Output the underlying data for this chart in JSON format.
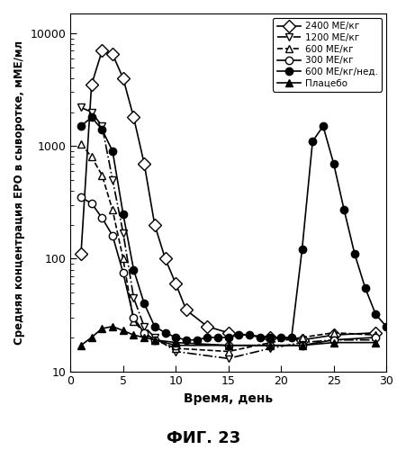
{
  "title": "ФИГ. 23",
  "ylabel": "Средняя концентрация ЕРО в сыворотке, мМЕ/мл",
  "xlabel": "Время, день",
  "xlim": [
    0,
    30
  ],
  "ylim": [
    10,
    15000
  ],
  "series": {
    "300": {
      "label": "300 МЕ/кг",
      "linestyle": "-",
      "marker": "o",
      "fillstyle": "none",
      "color": "black",
      "markersize": 6,
      "x": [
        1,
        2,
        3,
        4,
        5,
        6,
        7,
        8,
        10,
        15,
        19,
        22,
        25,
        29
      ],
      "y": [
        350,
        310,
        230,
        160,
        75,
        30,
        22,
        19,
        17,
        17,
        17,
        17,
        19,
        20
      ]
    },
    "600": {
      "label": "600 МЕ/кг",
      "linestyle": "--",
      "marker": "^",
      "fillstyle": "none",
      "color": "black",
      "markersize": 6,
      "x": [
        1,
        2,
        3,
        4,
        5,
        6,
        7,
        8,
        10,
        15,
        19,
        22,
        25,
        29
      ],
      "y": [
        1050,
        800,
        550,
        270,
        100,
        28,
        22,
        19,
        16,
        15,
        18,
        20,
        22,
        21
      ]
    },
    "1200": {
      "label": "1200 МЕ/кг",
      "linestyle": "-.",
      "marker": "v",
      "fillstyle": "none",
      "color": "black",
      "markersize": 6,
      "x": [
        1,
        2,
        3,
        4,
        5,
        6,
        7,
        8,
        10,
        15,
        19,
        22,
        25,
        29
      ],
      "y": [
        2200,
        2000,
        1500,
        500,
        170,
        45,
        25,
        20,
        15,
        13,
        16,
        18,
        19,
        19
      ]
    },
    "2400": {
      "label": "2400 МЕ/кг",
      "linestyle": "-",
      "marker": "D",
      "fillstyle": "none",
      "color": "black",
      "markersize": 7,
      "x": [
        1,
        2,
        3,
        4,
        5,
        6,
        7,
        8,
        9,
        10,
        11,
        13,
        15,
        19,
        22,
        25,
        29
      ],
      "y": [
        110,
        3500,
        7000,
        6500,
        4000,
        1800,
        700,
        200,
        100,
        60,
        35,
        25,
        22,
        20,
        19,
        21,
        22
      ]
    },
    "600weekly": {
      "label": "600 МЕ/кг/нед.",
      "linestyle": "-",
      "marker": "o",
      "fillstyle": "full",
      "color": "black",
      "markersize": 6,
      "x": [
        1,
        2,
        3,
        4,
        5,
        6,
        7,
        8,
        9,
        10,
        11,
        12,
        13,
        14,
        15,
        16,
        17,
        18,
        19,
        20,
        21,
        22,
        23,
        24,
        25,
        26,
        27,
        28,
        29,
        30
      ],
      "y": [
        1500,
        1800,
        1400,
        900,
        250,
        80,
        40,
        25,
        22,
        20,
        19,
        19,
        20,
        20,
        20,
        21,
        21,
        20,
        20,
        20,
        20,
        120,
        1100,
        1500,
        700,
        270,
        110,
        55,
        32,
        25
      ]
    },
    "placebo": {
      "label": "Плацебо",
      "linestyle": "-",
      "marker": "^",
      "fillstyle": "full",
      "color": "black",
      "markersize": 6,
      "x": [
        1,
        2,
        3,
        4,
        5,
        6,
        7,
        8,
        10,
        15,
        19,
        22,
        25,
        29
      ],
      "y": [
        17,
        20,
        24,
        25,
        23,
        21,
        20,
        19,
        18,
        17,
        17,
        17,
        18,
        18
      ]
    }
  },
  "background_color": "#ffffff"
}
